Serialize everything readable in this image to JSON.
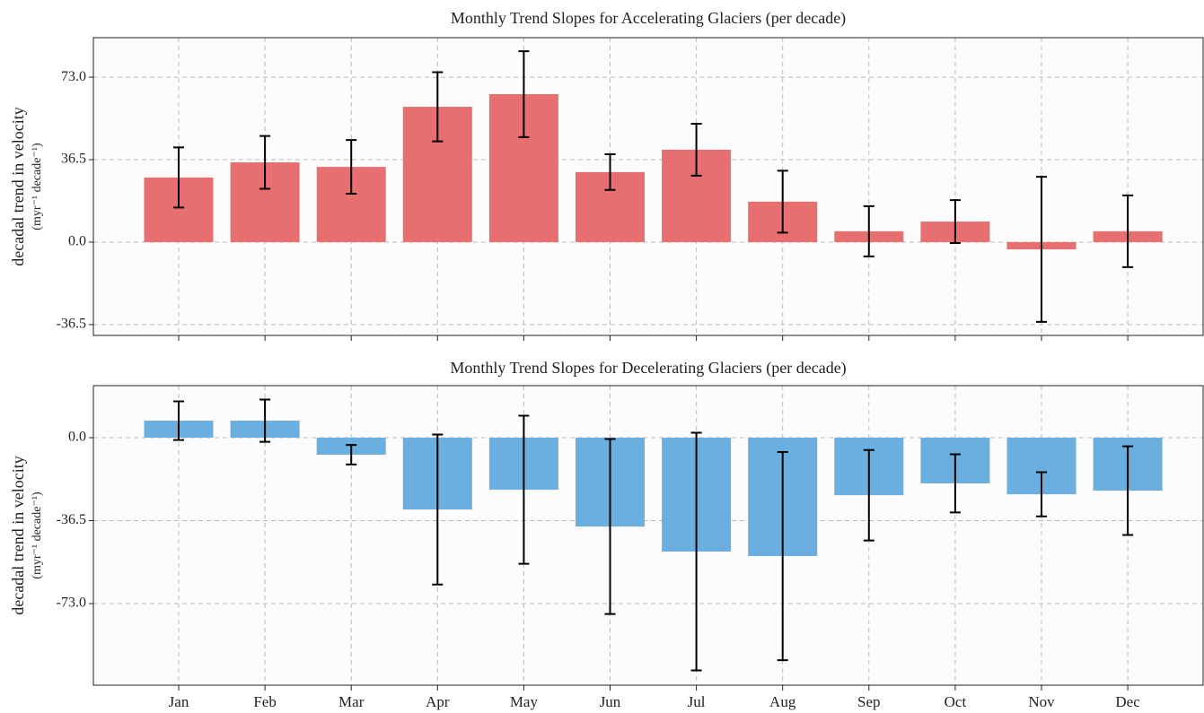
{
  "chart_data": [
    {
      "type": "bar",
      "title": "Monthly Trend Slopes for Accelerating Glaciers (per decade)",
      "y_label": "decadal trend in velocity",
      "y_label_unit": "(myr⁻¹ decade⁻¹)",
      "values": [
        28.6,
        35.3,
        33.3,
        59.9,
        65.5,
        31.0,
        40.9,
        17.9,
        4.8,
        9.1,
        -3.2,
        4.8
      ],
      "errors": [
        13.3,
        11.7,
        11.9,
        15.3,
        19.0,
        7.9,
        11.5,
        13.7,
        11.1,
        9.5,
        32.1,
        15.9
      ],
      "color": "#e76f6f",
      "ylim": [
        -41.3,
        90.5
      ],
      "yticks": [
        {
          "value": -36.5,
          "label": "-36.5"
        },
        {
          "value": 0,
          "label": "0.0"
        },
        {
          "value": 36.5,
          "label": "36.5"
        },
        {
          "value": 73,
          "label": "73.0"
        }
      ],
      "grid": true
    },
    {
      "type": "bar",
      "title": "Monthly Trend Slopes for Decelerating Glaciers (per decade)",
      "y_label": "decadal trend in velocity",
      "y_label_unit": "(myr⁻¹ decade⁻¹)",
      "categories": [
        "Jan",
        "Feb",
        "Mar",
        "Apr",
        "May",
        "Jun",
        "Jul",
        "Aug",
        "Sep",
        "Oct",
        "Nov",
        "Dec"
      ],
      "values": [
        7.5,
        7.5,
        -7.5,
        -31.6,
        -22.9,
        -39.1,
        -50.1,
        -52.1,
        -25.3,
        -20.1,
        -24.9,
        -23.3
      ],
      "errors": [
        8.5,
        9.3,
        4.3,
        33.0,
        32.6,
        38.5,
        52.3,
        45.8,
        19.9,
        12.8,
        9.7,
        19.5
      ],
      "color": "#6aafe0",
      "ylim": [
        -108.9,
        22.9
      ],
      "yticks": [
        {
          "value": -73,
          "label": "-73.0"
        },
        {
          "value": -36.5,
          "label": "-36.5"
        },
        {
          "value": 0,
          "label": "0.0"
        }
      ],
      "grid": true
    }
  ]
}
